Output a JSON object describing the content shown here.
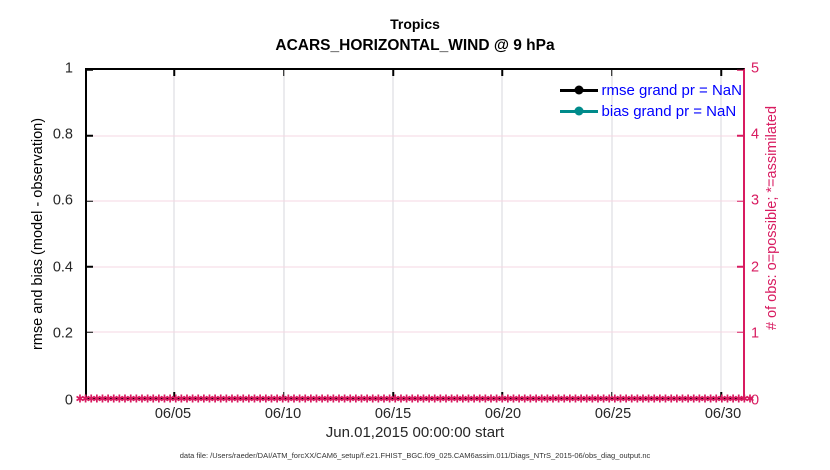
{
  "colors": {
    "magenta": "#d81b60",
    "teal": "#008b8b",
    "legend_text": "#0000ff",
    "grid_x": "#d7d7dc",
    "grid_y": "#f6d7e3",
    "axis_black": "#000000"
  },
  "figure": {
    "title_line1": "Tropics",
    "title_line2": "ACARS_HORIZONTAL_WIND @ 9 hPa",
    "footer": "data file: /Users/raeder/DAI/ATM_forcXX/CAM6_setup/f.e21.FHIST_BGC.f09_025.CAM6assim.011/Diags_NTrS_2015-06/obs_diag_output.nc"
  },
  "axes": {
    "x": {
      "title": "Jun.01,2015 00:00:00 start",
      "ticks": [
        {
          "label": "06/05",
          "pos": 13.333
        },
        {
          "label": "06/10",
          "pos": 30.0
        },
        {
          "label": "06/15",
          "pos": 46.667
        },
        {
          "label": "06/20",
          "pos": 63.333
        },
        {
          "label": "06/25",
          "pos": 80.0
        },
        {
          "label": "06/30",
          "pos": 96.667
        }
      ]
    },
    "y_left": {
      "title": "rmse and bias (model - observation)",
      "ticks": [
        {
          "label": "0",
          "pos": 0,
          "grid": false
        },
        {
          "label": "0.2",
          "pos": 20,
          "grid": true
        },
        {
          "label": "0.4",
          "pos": 40,
          "grid": true
        },
        {
          "label": "0.6",
          "pos": 60,
          "grid": true
        },
        {
          "label": "0.8",
          "pos": 80,
          "grid": true
        },
        {
          "label": "1",
          "pos": 100,
          "grid": false
        }
      ]
    },
    "y_right": {
      "title": "# of obs: o=possible; *=assimilated",
      "ticks": [
        {
          "label": "0",
          "pos": 0
        },
        {
          "label": "1",
          "pos": 20
        },
        {
          "label": "2",
          "pos": 40
        },
        {
          "label": "3",
          "pos": 60
        },
        {
          "label": "4",
          "pos": 80
        },
        {
          "label": "5",
          "pos": 100
        }
      ]
    }
  },
  "legend": {
    "entries": [
      {
        "label": "rmse grand pr = NaN",
        "color": "#000000"
      },
      {
        "label": "bias grand pr = NaN",
        "color": "#008b8b"
      }
    ]
  },
  "marker_row": {
    "symbol": "✱",
    "count": 120,
    "value": 0
  },
  "chart_data": {
    "type": "line",
    "title": "Tropics",
    "subtitle": "ACARS_HORIZONTAL_WIND @ 9 hPa",
    "xlabel": "Jun.01,2015 00:00:00 start",
    "x_tick_labels": [
      "06/05",
      "06/10",
      "06/15",
      "06/20",
      "06/25",
      "06/30"
    ],
    "y_left": {
      "label": "rmse and bias (model - observation)",
      "range": [
        0,
        1
      ],
      "ticks": [
        0,
        0.2,
        0.4,
        0.6,
        0.8,
        1
      ]
    },
    "y_right": {
      "label": "# of obs: o=possible; *=assimilated",
      "range": [
        0,
        5
      ],
      "ticks": [
        0,
        1,
        2,
        3,
        4,
        5
      ]
    },
    "grid": true,
    "legend_position": "upper right",
    "series": [
      {
        "name": "rmse grand pr = NaN",
        "axis": "left",
        "color": "#000000",
        "values": "NaN (no curve plotted)"
      },
      {
        "name": "bias grand pr = NaN",
        "axis": "left",
        "color": "#008b8b",
        "values": "NaN (no curve plotted)"
      },
      {
        "name": "# of obs (possible & assimilated)",
        "axis": "right",
        "color": "#d81b60",
        "marker": "*",
        "constant_value": 0,
        "note": "dense row of magenta asterisk markers at y=0 spanning the full time axis"
      }
    ]
  }
}
